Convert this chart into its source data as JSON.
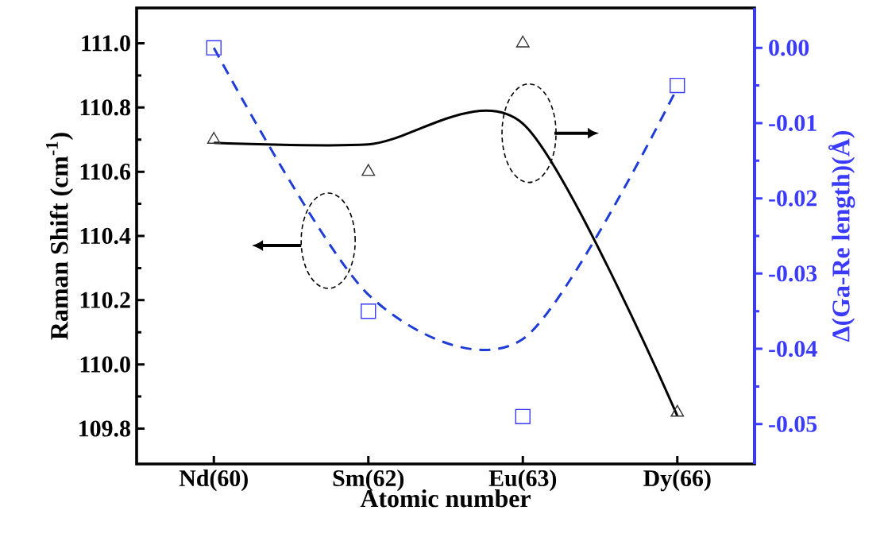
{
  "chart_data": {
    "type": "scatter",
    "xlabel": "Atomic number",
    "ylabel": "Raman Shift (cm$^{-1}$)",
    "y2label": "Δ(Ga-Re length)(Å)",
    "categories": [
      "Nd(60)",
      "Sm(62)",
      "Eu(63)",
      "Dy(66)"
    ],
    "ylim": [
      109.69,
      111.11
    ],
    "yticks": [
      109.8,
      {
        "value": 110,
        "label": "110.0"
      },
      110.2,
      110.4,
      110.6,
      110.8,
      {
        "value": 111,
        "label": "111.0"
      }
    ],
    "y2lim": [
      -0.0553,
      0.0053
    ],
    "y2ticks": [
      -0.05,
      -0.04,
      -0.03,
      -0.02,
      -0.01,
      {
        "value": 0,
        "label": "0.00"
      }
    ],
    "series": [
      {
        "color": "#333333",
        "marker": "triangle",
        "values": [
          110.7,
          110.6,
          111.0,
          109.85
        ]
      },
      {
        "axis": "y2",
        "color": "#3b3bff",
        "marker": "square",
        "values": [
          0.0,
          -0.035,
          -0.049,
          -0.005
        ]
      },
      {
        "type": "line",
        "color": "#000000",
        "marker": "none",
        "line_style": "solid",
        "values": [
          110.69,
          110.685,
          110.75,
          109.84
        ]
      },
      {
        "type": "line",
        "axis": "y2",
        "color": "#1e3cd6",
        "marker": "none",
        "line_style": "dashed",
        "values": [
          0.0,
          -0.0328,
          -0.0387,
          -0.0053
        ]
      }
    ]
  }
}
